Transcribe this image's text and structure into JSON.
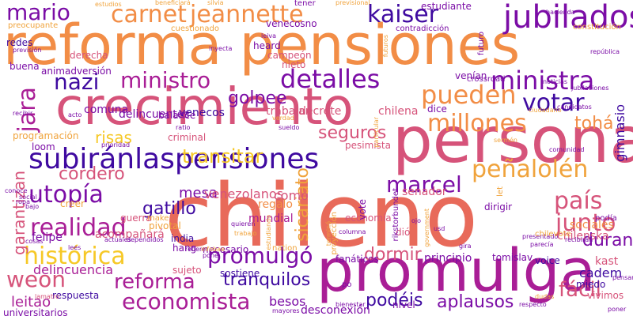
{
  "colors": {
    "orange": "#f28d46",
    "coral": "#e86a5a",
    "pink": "#d6537a",
    "magenta": "#a91e96",
    "violet": "#7b0da6",
    "indigo": "#3f0aa0",
    "yellow": "#f6c826",
    "gold": "#f0a33c"
  },
  "words": [
    {
      "text": "reforma pensiones",
      "color": "orange"
    },
    {
      "text": "chileno",
      "color": "coral"
    },
    {
      "text": "persona",
      "color": "pink"
    },
    {
      "text": "crecimiento",
      "color": "pink"
    },
    {
      "text": "promulga",
      "color": "magenta"
    },
    {
      "text": "subiránlaspensiones",
      "color": "indigo"
    },
    {
      "text": "jubilados",
      "color": "violet"
    },
    {
      "text": "carnet",
      "color": "orange"
    },
    {
      "text": "jeannette",
      "color": "orange"
    },
    {
      "text": "kaiser",
      "color": "indigo"
    },
    {
      "text": "mario",
      "color": "violet"
    },
    {
      "text": "nazi",
      "color": "indigo"
    },
    {
      "text": "ministro",
      "color": "magenta"
    },
    {
      "text": "detalles",
      "color": "violet"
    },
    {
      "text": "ministra",
      "color": "violet"
    },
    {
      "text": "pueden",
      "color": "orange"
    },
    {
      "text": "votar",
      "color": "indigo"
    },
    {
      "text": "millones",
      "color": "orange"
    },
    {
      "text": "jara",
      "color": "magenta"
    },
    {
      "text": "utopía",
      "color": "violet"
    },
    {
      "text": "país",
      "color": "pink"
    },
    {
      "text": "peñalolén",
      "color": "gold"
    },
    {
      "text": "realidad",
      "color": "magenta"
    },
    {
      "text": "marcel",
      "color": "violet"
    },
    {
      "text": "junto",
      "color": "pink"
    },
    {
      "text": "histórica",
      "color": "yellow"
    },
    {
      "text": "promulgó",
      "color": "violet"
    },
    {
      "text": "reforma",
      "color": "magenta"
    },
    {
      "text": "weon",
      "color": "pink"
    },
    {
      "text": "economista",
      "color": "magenta"
    },
    {
      "text": "tranquilos",
      "color": "indigo"
    },
    {
      "text": "podéis",
      "color": "indigo"
    },
    {
      "text": "aplausos",
      "color": "violet"
    },
    {
      "text": "fácil",
      "color": "pink"
    },
    {
      "text": "transitar",
      "color": "yellow"
    },
    {
      "text": "cordero",
      "color": "pink"
    },
    {
      "text": "gatillo",
      "color": "indigo"
    },
    {
      "text": "sicariato",
      "color": "gold"
    },
    {
      "text": "duran",
      "color": "violet"
    },
    {
      "text": "dormir",
      "color": "pink"
    },
    {
      "text": "seguros",
      "color": "pink"
    },
    {
      "text": "tohá",
      "color": "orange"
    },
    {
      "text": "golpee",
      "color": "violet"
    },
    {
      "text": "venecos",
      "color": "indigo"
    },
    {
      "text": "trabajar",
      "color": "pink"
    },
    {
      "text": "decrete",
      "color": "pink"
    },
    {
      "text": "chilena",
      "color": "pink"
    },
    {
      "text": "comuna",
      "color": "violet"
    },
    {
      "text": "delincuentes",
      "color": "violet"
    },
    {
      "text": "risas",
      "color": "yellow"
    },
    {
      "text": "mesa",
      "color": "violet"
    },
    {
      "text": "venezolanos",
      "color": "pink"
    },
    {
      "text": "como",
      "color": "pink"
    },
    {
      "text": "garantizan",
      "color": "pink"
    },
    {
      "text": "delincuencia",
      "color": "magenta"
    },
    {
      "text": "cadem",
      "color": "indigo"
    },
    {
      "text": "leitao",
      "color": "magenta"
    },
    {
      "text": "besos",
      "color": "violet"
    },
    {
      "text": "desconexión",
      "color": "violet"
    },
    {
      "text": "gimnasio",
      "color": "indigo"
    },
    {
      "text": "senador",
      "color": "pink"
    },
    {
      "text": "felipe",
      "color": "violet"
    },
    {
      "text": "acompañará",
      "color": "pink"
    },
    {
      "text": "mundial",
      "color": "magenta"
    },
    {
      "text": "regalo",
      "color": "orange"
    },
    {
      "text": "principio",
      "color": "violet"
    },
    {
      "text": "sociales",
      "color": "orange"
    },
    {
      "text": "chilenska",
      "color": "pink"
    },
    {
      "text": "kast",
      "color": "pink"
    },
    {
      "text": "necesario",
      "color": "violet"
    },
    {
      "text": "sujeto",
      "color": "pink"
    },
    {
      "text": "sostiene",
      "color": "indigo"
    },
    {
      "text": "tomislav",
      "color": "violet"
    },
    {
      "text": "voice",
      "color": "indigo"
    },
    {
      "text": "miedo",
      "color": "indigo"
    },
    {
      "text": "vivimos",
      "color": "pink"
    },
    {
      "text": "universitarios",
      "color": "violet"
    },
    {
      "text": "respuesta",
      "color": "indigo"
    },
    {
      "text": "fanáticos",
      "color": "violet"
    },
    {
      "text": "dió",
      "color": "pink"
    },
    {
      "text": "venían",
      "color": "violet"
    },
    {
      "text": "pivotal",
      "color": "gold"
    },
    {
      "text": "india",
      "color": "indigo"
    },
    {
      "text": "hang",
      "color": "violet"
    },
    {
      "text": "guerra",
      "color": "pink"
    },
    {
      "text": "dirigir",
      "color": "violet"
    },
    {
      "text": "economía",
      "color": "pink"
    },
    {
      "text": "nivel",
      "color": "violet"
    },
    {
      "text": "vote",
      "color": "violet"
    },
    {
      "text": "dice",
      "color": "violet"
    },
    {
      "text": "criminal",
      "color": "pink"
    },
    {
      "text": "programación",
      "color": "gold"
    },
    {
      "text": "loom",
      "color": "violet"
    },
    {
      "text": "balance",
      "color": "violet"
    },
    {
      "text": "pesimista",
      "color": "pink"
    },
    {
      "text": "creer",
      "color": "gold"
    },
    {
      "text": "redes",
      "color": "indigo"
    },
    {
      "text": "buena",
      "color": "violet"
    },
    {
      "text": "derecha",
      "color": "pink"
    },
    {
      "text": "animadversión",
      "color": "violet"
    },
    {
      "text": "venecosno",
      "color": "violet"
    },
    {
      "text": "campeón",
      "color": "pink"
    },
    {
      "text": "nieto",
      "color": "pink"
    },
    {
      "text": "heard",
      "color": "violet"
    },
    {
      "text": "cuestionado",
      "color": "gold"
    },
    {
      "text": "estudiante",
      "color": "violet"
    },
    {
      "text": "contradicción",
      "color": "violet"
    },
    {
      "text": "constitución",
      "color": "gold"
    },
    {
      "text": "preocupante",
      "color": "gold"
    },
    {
      "text": "estudios",
      "color": "gold"
    },
    {
      "text": "beneficiará",
      "color": "gold"
    },
    {
      "text": "silvia",
      "color": "gold"
    },
    {
      "text": "tener",
      "color": "violet"
    },
    {
      "text": "previsional",
      "color": "gold"
    },
    {
      "text": "hacienda",
      "color": "violet"
    },
    {
      "text": "crossroad",
      "color": "violet"
    },
    {
      "text": "sermón",
      "color": "gold"
    },
    {
      "text": "comunidad",
      "color": "violet"
    },
    {
      "text": "mayores",
      "color": "violet"
    },
    {
      "text": "bienestar",
      "color": "violet"
    },
    {
      "text": "respecto",
      "color": "violet"
    },
    {
      "text": "futuro",
      "color": "violet"
    },
    {
      "text": "jubilaciones",
      "color": "violet"
    },
    {
      "text": "república",
      "color": "violet"
    },
    {
      "text": "noticias",
      "color": "violet"
    },
    {
      "text": "terminó",
      "color": "gold"
    },
    {
      "text": "proyección",
      "color": "gold"
    },
    {
      "text": "particular",
      "color": "gold"
    },
    {
      "text": "estudiando",
      "color": "gold"
    },
    {
      "text": "inyecta",
      "color": "violet"
    },
    {
      "text": "previsión",
      "color": "violet"
    },
    {
      "text": "acto",
      "color": "violet"
    },
    {
      "text": "ratio",
      "color": "violet"
    },
    {
      "text": "recibir",
      "color": "violet"
    },
    {
      "text": "candidatos",
      "color": "violet"
    },
    {
      "text": "ciudadano",
      "color": "gold"
    },
    {
      "text": "podía",
      "color": "violet"
    },
    {
      "text": "presentado",
      "color": "violet"
    },
    {
      "text": "recibiran",
      "color": "violet"
    },
    {
      "text": "rikstorbundet",
      "color": "violet"
    },
    {
      "text": "government",
      "color": "gold"
    },
    {
      "text": "chilevote",
      "color": "gold"
    },
    {
      "text": "ojo",
      "color": "violet"
    },
    {
      "text": "po",
      "color": "violet"
    },
    {
      "text": "parecía",
      "color": "violet"
    },
    {
      "text": "quieren",
      "color": "violet"
    },
    {
      "text": "make",
      "color": "gold"
    },
    {
      "text": "social",
      "color": "violet"
    },
    {
      "text": "bajo",
      "color": "violet"
    },
    {
      "text": "conoce",
      "color": "violet"
    },
    {
      "text": "prioridad",
      "color": "violet"
    },
    {
      "text": "lamatro",
      "color": "pink"
    },
    {
      "text": "actuales",
      "color": "violet"
    },
    {
      "text": "dependidos",
      "color": "violet"
    },
    {
      "text": "trabajo",
      "color": "gold"
    },
    {
      "text": "pensar",
      "color": "violet"
    },
    {
      "text": "poner",
      "color": "violet"
    },
    {
      "text": "dudas",
      "color": "gold"
    },
    {
      "text": "refiere",
      "color": "violet"
    },
    {
      "text": "pone",
      "color": "violet"
    },
    {
      "text": "futuros",
      "color": "gold"
    },
    {
      "text": "cosas",
      "color": "violet"
    },
    {
      "text": "lees",
      "color": "violet"
    },
    {
      "text": "nation",
      "color": "gold"
    },
    {
      "text": "infobae",
      "color": "gold"
    },
    {
      "text": "leiva",
      "color": "violet"
    },
    {
      "text": "let",
      "color": "gold"
    },
    {
      "text": "usd",
      "color": "violet"
    },
    {
      "text": "gira",
      "color": "violet"
    },
    {
      "text": "verdad",
      "color": "gold"
    },
    {
      "text": "sueldo",
      "color": "violet"
    },
    {
      "text": "columna",
      "color": "violet"
    },
    {
      "text": "ropa",
      "color": "violet"
    }
  ]
}
